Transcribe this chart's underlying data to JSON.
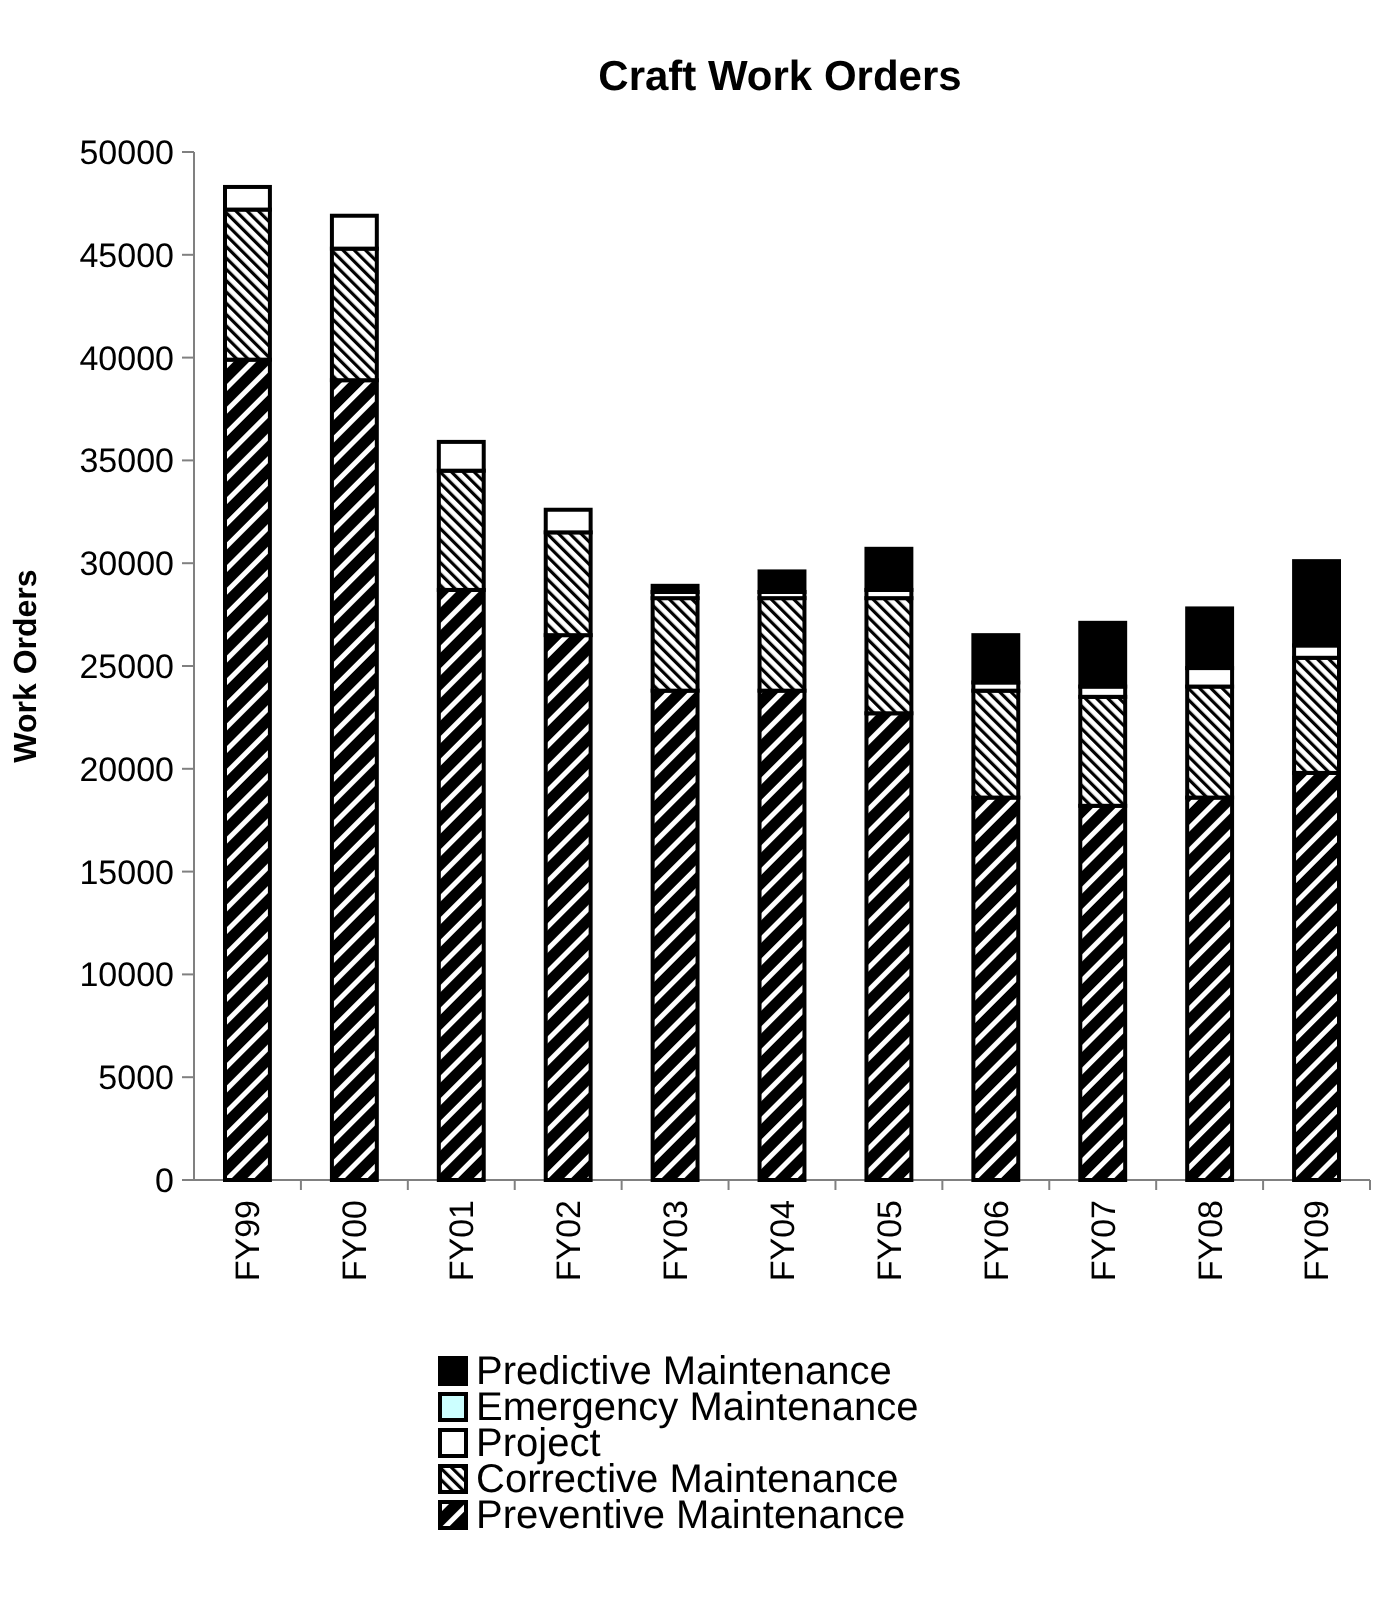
{
  "chart_data": {
    "type": "bar",
    "title": "Craft Work Orders",
    "ylabel": "Work Orders",
    "categories": [
      "FY99",
      "FY00",
      "FY01",
      "FY02",
      "FY03",
      "FY04",
      "FY05",
      "FY06",
      "FY07",
      "FY08",
      "FY09"
    ],
    "stacked": true,
    "series": [
      {
        "name": "Preventive Maintenance",
        "color": "#000000",
        "values": [
          39900,
          38900,
          28700,
          26500,
          23800,
          23800,
          22700,
          18600,
          18200,
          18600,
          19800
        ]
      },
      {
        "name": "Corrective Maintenance",
        "color": "#000000",
        "values": [
          7300,
          6400,
          5800,
          5000,
          4500,
          4500,
          5600,
          5200,
          5300,
          5400,
          5600
        ]
      },
      {
        "name": "Project",
        "color": "#ffffff",
        "values": [
          1100,
          1600,
          1400,
          1100,
          300,
          300,
          400,
          400,
          500,
          900,
          600
        ]
      },
      {
        "name": "Emergency Maintenance",
        "color": "#ccffff",
        "values": [
          0,
          0,
          0,
          0,
          0,
          0,
          0,
          0,
          0,
          0,
          0
        ]
      },
      {
        "name": "Predictive Maintenance",
        "color": "#000000",
        "values": [
          0,
          0,
          0,
          0,
          300,
          1000,
          2000,
          2300,
          3100,
          2900,
          4100
        ]
      }
    ],
    "ylim": [
      0,
      50000
    ],
    "yticks": [
      0,
      5000,
      10000,
      15000,
      20000,
      25000,
      30000,
      35000,
      40000,
      45000,
      50000
    ],
    "grid": false,
    "legend": "bottom"
  }
}
